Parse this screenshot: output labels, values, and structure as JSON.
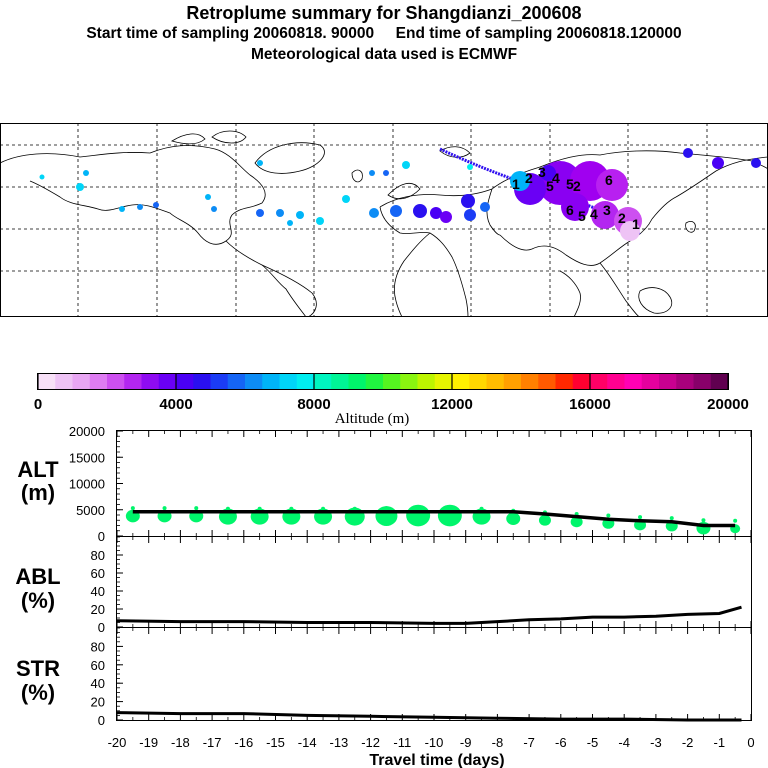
{
  "header": {
    "title": "Retroplume summary for Shangdianzi_200608",
    "subtitle_start": "Start time of sampling 20060818. 90000",
    "subtitle_end": "End time of sampling 20060818.120000",
    "subtitle_met": "Meteorological data used is ECMWF"
  },
  "map": {
    "receptor_labels": [
      "1",
      "2",
      "3",
      "4",
      "5",
      "6",
      "6",
      "5",
      "4",
      "3",
      "2",
      "1",
      "5",
      "2"
    ],
    "colors": {
      "land_line": "#000000",
      "frame": "#000000"
    }
  },
  "colorbar": {
    "ticks": [
      "0",
      "4000",
      "8000",
      "12000",
      "16000",
      "20000"
    ],
    "label": "Altitude (m)",
    "min": 0,
    "max": 20000,
    "colors": [
      "#f7e0f7",
      "#eec3f5",
      "#e8a6f3",
      "#de7cf2",
      "#cd50f0",
      "#b326f0",
      "#8f0cf2",
      "#6a00f5",
      "#4a00f5",
      "#2a10f0",
      "#1b3cf5",
      "#1565f5",
      "#0d8cf5",
      "#00b4f8",
      "#00d5f8",
      "#00eef0",
      "#00f5c0",
      "#00f596",
      "#00f56b",
      "#20f540",
      "#55f520",
      "#8af510",
      "#bdf500",
      "#e6f500",
      "#fff000",
      "#ffd700",
      "#ffbd00",
      "#ffa000",
      "#ff8000",
      "#ff5a00",
      "#ff2800",
      "#ff0030",
      "#ff0066",
      "#ff0090",
      "#ff00b4",
      "#e6009e",
      "#c80090",
      "#a8007c",
      "#88006a",
      "#600050"
    ]
  },
  "chart_data": [
    {
      "type": "line",
      "title": "ALT (m)",
      "panel_label_line1": "ALT",
      "panel_label_line2": "(m)",
      "ylim": [
        0,
        20000
      ],
      "yticks": [
        "20000",
        "15000",
        "10000",
        "5000",
        "0"
      ],
      "x": [
        -19.5,
        -18.5,
        -17.5,
        -16.5,
        -15.5,
        -14.5,
        -13.5,
        -12.5,
        -11.5,
        -10.5,
        -9.5,
        -8.5,
        -7.5,
        -6.5,
        -5.5,
        -4.5,
        -3.5,
        -2.5,
        -1.5,
        -0.5
      ],
      "values": [
        4600,
        4600,
        4600,
        4600,
        4600,
        4600,
        4600,
        4600,
        4600,
        4600,
        4600,
        4600,
        4600,
        4200,
        3700,
        3200,
        2900,
        2700,
        2000,
        2000
      ],
      "spread_markers": [
        {
          "x": -19.5,
          "y": 3800,
          "r": 7
        },
        {
          "x": -18.5,
          "y": 3800,
          "r": 7
        },
        {
          "x": -17.5,
          "y": 3800,
          "r": 7
        },
        {
          "x": -16.5,
          "y": 3700,
          "r": 9
        },
        {
          "x": -15.5,
          "y": 3700,
          "r": 9
        },
        {
          "x": -14.5,
          "y": 3700,
          "r": 9
        },
        {
          "x": -13.5,
          "y": 3700,
          "r": 9
        },
        {
          "x": -12.5,
          "y": 3700,
          "r": 10
        },
        {
          "x": -11.5,
          "y": 3800,
          "r": 11
        },
        {
          "x": -10.5,
          "y": 3900,
          "r": 12
        },
        {
          "x": -9.5,
          "y": 3900,
          "r": 12
        },
        {
          "x": -8.5,
          "y": 3700,
          "r": 9
        },
        {
          "x": -7.5,
          "y": 3300,
          "r": 7
        },
        {
          "x": -6.5,
          "y": 3000,
          "r": 6
        },
        {
          "x": -5.5,
          "y": 2700,
          "r": 6
        },
        {
          "x": -4.5,
          "y": 2400,
          "r": 6
        },
        {
          "x": -3.5,
          "y": 2100,
          "r": 6
        },
        {
          "x": -2.5,
          "y": 1900,
          "r": 6
        },
        {
          "x": -1.5,
          "y": 1500,
          "r": 7
        },
        {
          "x": -0.5,
          "y": 1400,
          "r": 5
        }
      ]
    },
    {
      "type": "line",
      "title": "ABL (%)",
      "panel_label_line1": "ABL",
      "panel_label_line2": "(%)",
      "ylim": [
        0,
        100
      ],
      "yticks": [
        "80",
        "60",
        "40",
        "20",
        "0"
      ],
      "x": [
        -20,
        -18,
        -16,
        -14,
        -12,
        -10,
        -9,
        -8,
        -7,
        -6,
        -5,
        -4,
        -3,
        -2,
        -1,
        -0.3
      ],
      "values": [
        7,
        6,
        6,
        5,
        5,
        4,
        4,
        6,
        8,
        9,
        11,
        11,
        12,
        14,
        15,
        22
      ]
    },
    {
      "type": "line",
      "title": "STR (%)",
      "panel_label_line1": "STR",
      "panel_label_line2": "(%)",
      "ylim": [
        0,
        100
      ],
      "yticks": [
        "80",
        "60",
        "40",
        "20",
        "0"
      ],
      "x": [
        -20,
        -18,
        -16,
        -14,
        -12,
        -10,
        -8,
        -6,
        -4,
        -2,
        -0.3
      ],
      "values": [
        8,
        7,
        7,
        5,
        4,
        3,
        2,
        1,
        1,
        0,
        0
      ],
      "xlabel": "Travel time (days)",
      "xticks": [
        "-20",
        "-19",
        "-18",
        "-17",
        "-16",
        "-15",
        "-14",
        "-13",
        "-12",
        "-11",
        "-10",
        "-9",
        "-8",
        "-7",
        "-6",
        "-5",
        "-4",
        "-3",
        "-2",
        "-1",
        "0"
      ],
      "xlim": [
        -20,
        0
      ]
    }
  ]
}
